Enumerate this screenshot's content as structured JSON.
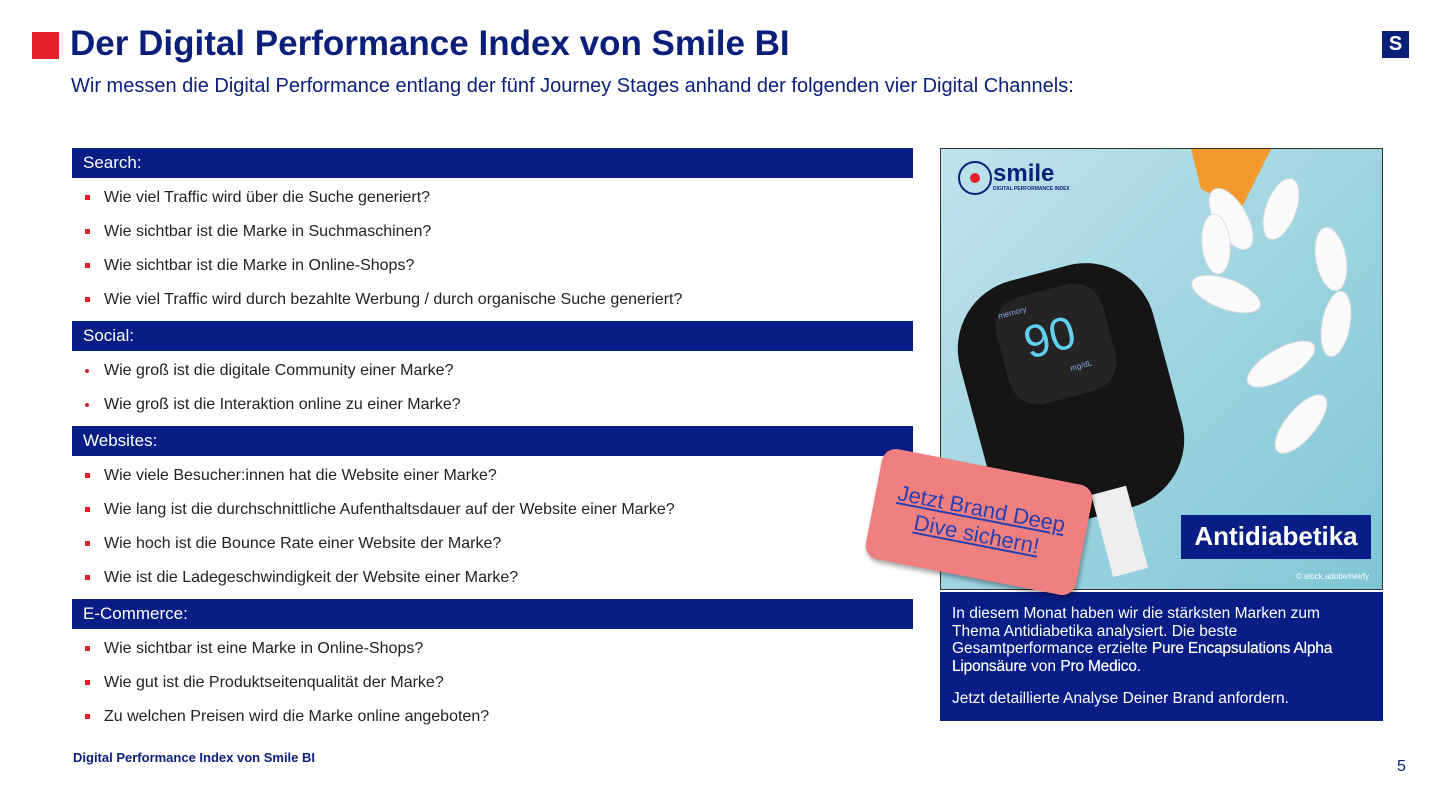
{
  "header": {
    "title": "Der Digital Performance Index von Smile BI",
    "subtitle": "Wir messen die Digital Performance entlang der fünf Journey Stages anhand der folgenden vier Digital Channels:",
    "brand_icon": "S"
  },
  "sections": [
    {
      "heading": "Search:",
      "items": [
        "Wie viel Traffic wird über die Suche generiert?",
        "Wie sichtbar ist die Marke in Suchmaschinen?",
        "Wie sichtbar ist die Marke in Online-Shops?",
        "Wie viel Traffic wird durch bezahlte Werbung / durch organische Suche generiert?"
      ]
    },
    {
      "heading": "Social:",
      "items": [
        "Wie groß ist die digitale Community einer Marke?",
        "Wie groß ist die Interaktion online zu einer Marke?"
      ]
    },
    {
      "heading": "Websites:",
      "items": [
        "Wie viele Besucher:innen hat die Website einer Marke?",
        "Wie lang ist die durchschnittliche Aufenthaltsdauer auf der Website einer Marke?",
        "Wie hoch ist die Bounce Rate einer Website der Marke?",
        "Wie ist die Ladegeschwindigkeit der Website einer Marke?"
      ]
    },
    {
      "heading": "E-Commerce:",
      "items": [
        "Wie sichtbar ist eine Marke in Online-Shops?",
        "Wie gut ist die Produktseitenqualität der Marke?",
        "Zu welchen Preisen wird die Marke online angeboten?"
      ]
    }
  ],
  "image": {
    "logo": "smile",
    "logo_tagline": "DIGITAL PERFORMANCE INDEX",
    "meter_label": "memory",
    "meter_value": "90",
    "meter_unit": "mg/dL",
    "label": "Antidiabetika",
    "credit": "© stock.adobe/neirfy"
  },
  "badge": "Jetzt Brand Deep Dive sichern!",
  "info": {
    "parts": [
      {
        "text": "In diesem Monat haben wir die stärksten Marken zum Thema Antidiabetika analysiert. Die beste Gesamtperformance erzielte ",
        "bold": false
      },
      {
        "text": "Pure Encapsulations Alpha Liponsäure",
        "bold": true
      },
      {
        "text": " von ",
        "bold": false
      },
      {
        "text": "Pro Medico",
        "bold": true
      },
      {
        "text": ".",
        "bold": false
      }
    ],
    "cta": "Jetzt detaillierte Analyse Deiner Brand anfordern."
  },
  "footer": {
    "text": "Digital Performance Index von Smile BI",
    "page_number": 5
  }
}
